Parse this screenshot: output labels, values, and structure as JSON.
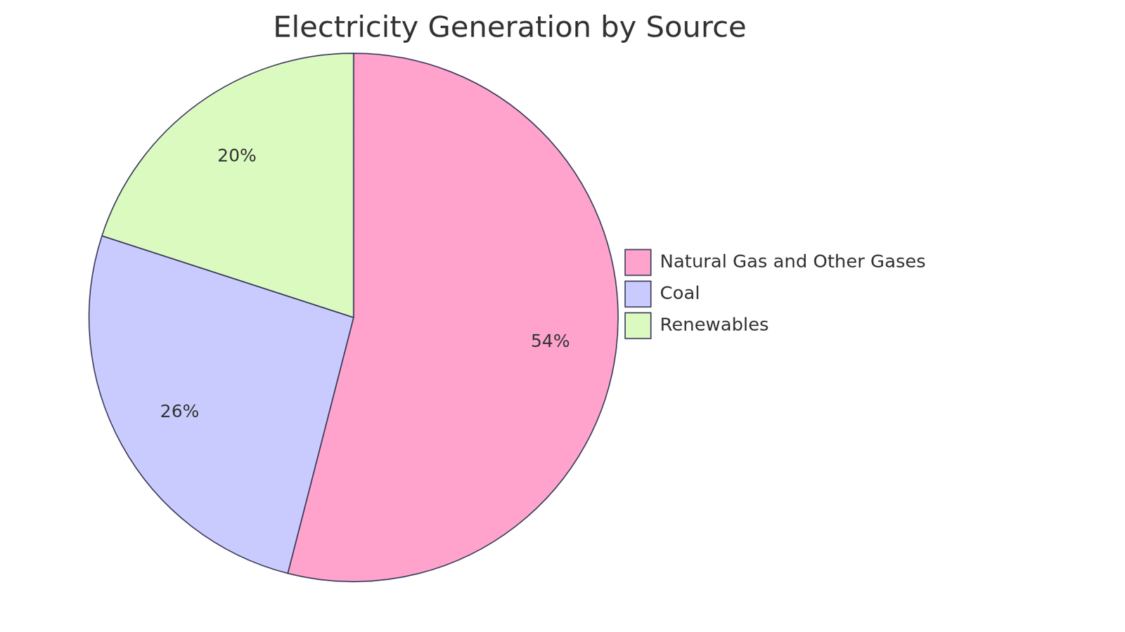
{
  "chart_data": {
    "type": "pie",
    "title": "Electricity Generation by Source",
    "categories": [
      "Natural Gas and Other Gases",
      "Coal",
      "Renewables"
    ],
    "values": [
      54,
      26,
      20
    ],
    "value_labels": [
      "54%",
      "26%",
      "20%"
    ],
    "colors": [
      "#ffa3cc",
      "#c9cbff",
      "#dafabf"
    ],
    "legend": "right",
    "data_labels": true
  }
}
